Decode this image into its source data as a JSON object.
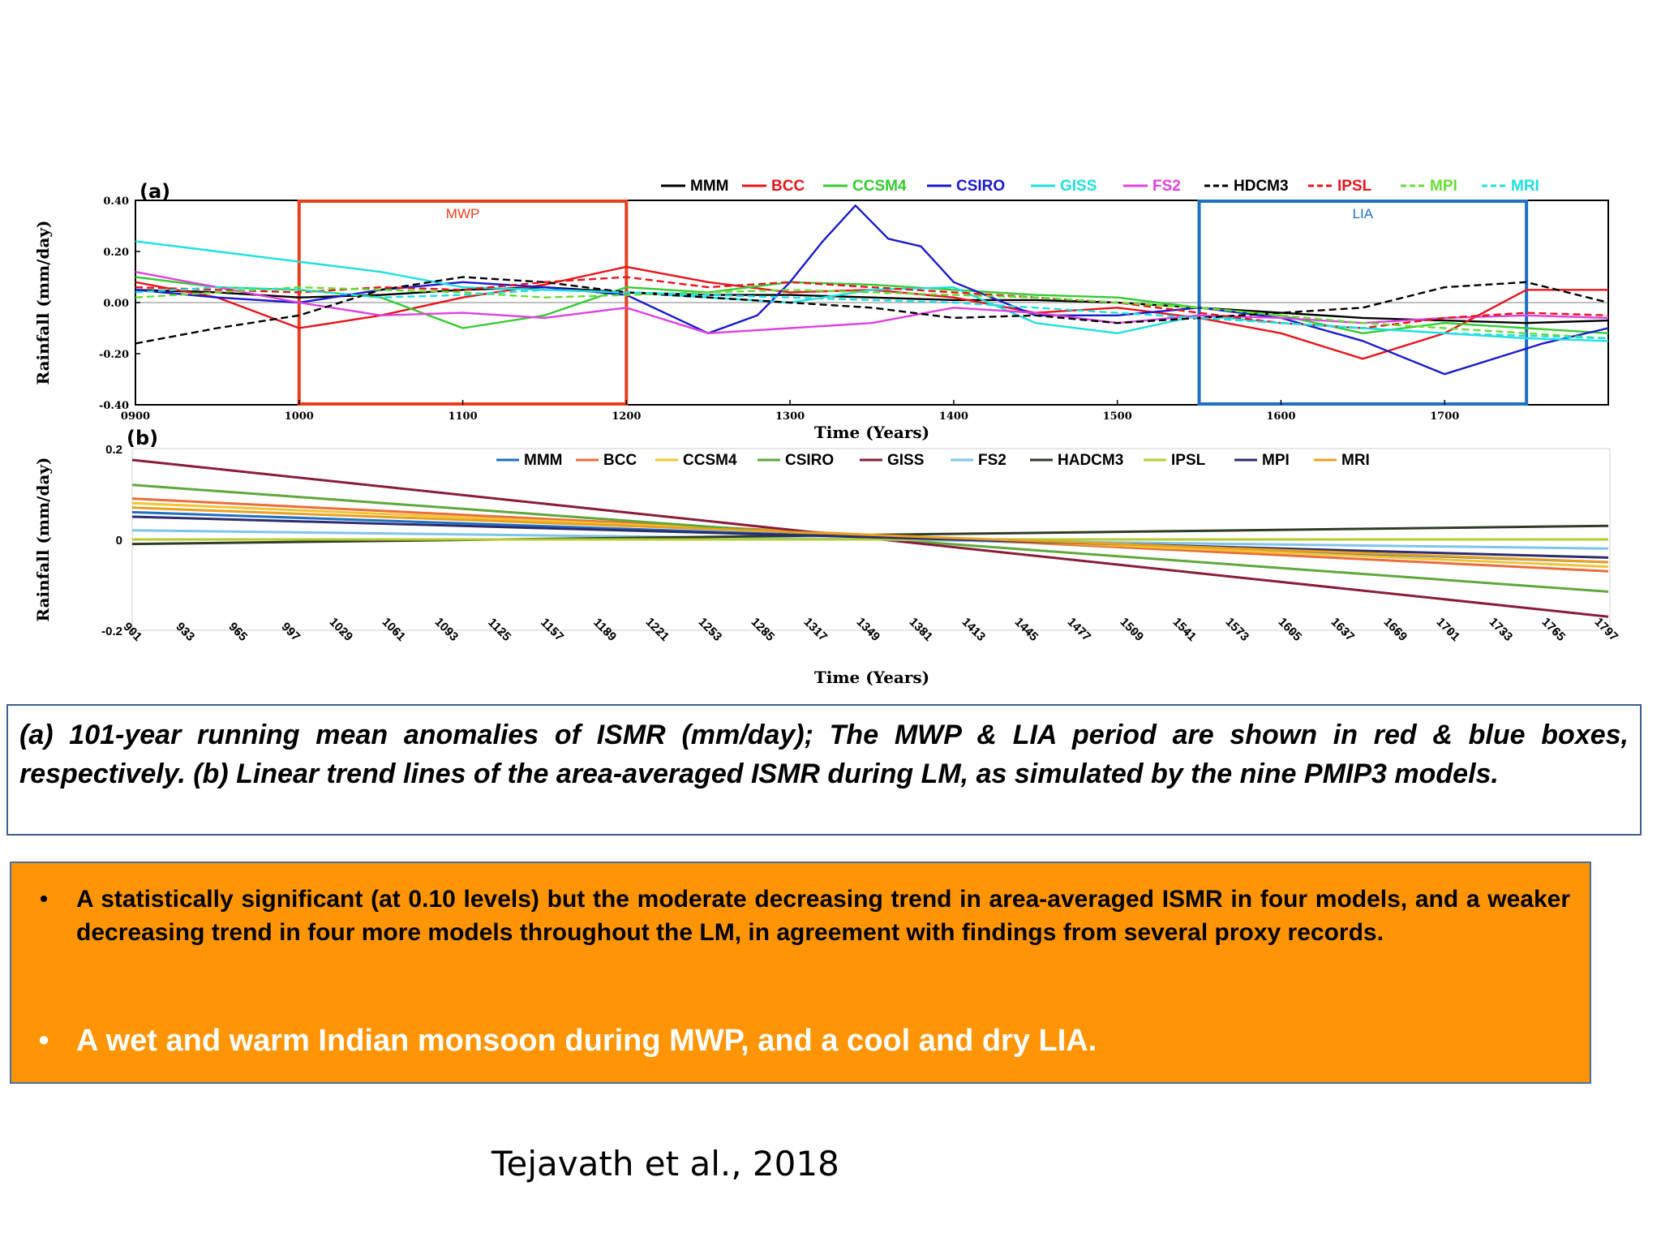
{
  "chart_data": [
    {
      "panel": "(a)",
      "type": "line",
      "xlabel": "Time (Years)",
      "ylabel": "Rainfall (mm/day)",
      "xlim": [
        900,
        1800
      ],
      "ylim": [
        -0.4,
        0.4
      ],
      "xticks": [
        "0900",
        "1000",
        "1100",
        "1200",
        "1300",
        "1400",
        "1500",
        "1600",
        "1700"
      ],
      "xtick_values": [
        900,
        1000,
        1100,
        1200,
        1300,
        1400,
        1500,
        1600,
        1700
      ],
      "yticks": [
        "0.40",
        "0.20",
        "0.00",
        "-0.20",
        "-0.40"
      ],
      "ytick_values": [
        0.4,
        0.2,
        0.0,
        -0.2,
        -0.4
      ],
      "legend_position": "top",
      "boxes": [
        {
          "label": "MWP",
          "from": 1000,
          "to": 1200,
          "color": "#e8401c"
        },
        {
          "label": "LIA",
          "from": 1550,
          "to": 1750,
          "color": "#1f6fc4"
        }
      ],
      "series": [
        {
          "name": "MMM",
          "color": "#000000",
          "dash": "solid",
          "x": [
            900,
            950,
            1000,
            1050,
            1100,
            1150,
            1200,
            1250,
            1300,
            1350,
            1400,
            1450,
            1500,
            1550,
            1600,
            1650,
            1700,
            1750,
            1800
          ],
          "values": [
            0.05,
            0.04,
            0.02,
            0.03,
            0.05,
            0.06,
            0.04,
            0.03,
            0.03,
            0.02,
            0.01,
            0.01,
            0.0,
            -0.02,
            -0.04,
            -0.06,
            -0.07,
            -0.08,
            -0.07
          ]
        },
        {
          "name": "BCC",
          "color": "#e8141c",
          "dash": "solid",
          "x": [
            900,
            950,
            1000,
            1050,
            1100,
            1150,
            1200,
            1250,
            1300,
            1350,
            1400,
            1450,
            1500,
            1550,
            1600,
            1650,
            1700,
            1750,
            1800
          ],
          "values": [
            0.08,
            0.02,
            -0.1,
            -0.05,
            0.02,
            0.07,
            0.14,
            0.08,
            0.04,
            0.05,
            0.02,
            -0.04,
            -0.02,
            -0.06,
            -0.12,
            -0.22,
            -0.12,
            0.05,
            0.05
          ]
        },
        {
          "name": "CCSM4",
          "color": "#33cc33",
          "dash": "solid",
          "x": [
            900,
            950,
            1000,
            1050,
            1100,
            1150,
            1200,
            1250,
            1300,
            1350,
            1400,
            1450,
            1500,
            1550,
            1600,
            1650,
            1700,
            1750,
            1800
          ],
          "values": [
            0.1,
            0.06,
            0.05,
            0.02,
            -0.1,
            -0.05,
            0.06,
            0.04,
            0.08,
            0.07,
            0.05,
            0.03,
            0.02,
            -0.02,
            -0.05,
            -0.12,
            -0.08,
            -0.1,
            -0.12
          ]
        },
        {
          "name": "CSIRO",
          "color": "#1a1acc",
          "dash": "solid",
          "x": [
            900,
            950,
            1000,
            1050,
            1100,
            1150,
            1200,
            1250,
            1280,
            1300,
            1320,
            1340,
            1360,
            1380,
            1400,
            1450,
            1500,
            1550,
            1600,
            1650,
            1700,
            1740,
            1760,
            1800
          ],
          "values": [
            0.05,
            0.02,
            0.0,
            0.05,
            0.08,
            0.06,
            0.03,
            -0.12,
            -0.05,
            0.08,
            0.24,
            0.38,
            0.25,
            0.22,
            0.08,
            -0.05,
            -0.05,
            -0.02,
            -0.06,
            -0.15,
            -0.28,
            -0.2,
            -0.16,
            -0.1
          ]
        },
        {
          "name": "GISS",
          "color": "#1ee0e0",
          "dash": "solid",
          "x": [
            900,
            950,
            1000,
            1050,
            1100,
            1150,
            1200,
            1250,
            1300,
            1350,
            1400,
            1450,
            1500,
            1550,
            1600,
            1650,
            1700,
            1750,
            1800
          ],
          "values": [
            0.24,
            0.2,
            0.16,
            0.12,
            0.06,
            0.05,
            0.04,
            0.02,
            0.0,
            0.05,
            0.06,
            -0.08,
            -0.12,
            -0.05,
            -0.08,
            -0.1,
            -0.12,
            -0.14,
            -0.15
          ]
        },
        {
          "name": "FS2",
          "color": "#e040e0",
          "dash": "solid",
          "x": [
            900,
            950,
            1000,
            1050,
            1100,
            1150,
            1200,
            1250,
            1300,
            1350,
            1400,
            1450,
            1500,
            1550,
            1600,
            1650,
            1700,
            1750,
            1800
          ],
          "values": [
            0.12,
            0.06,
            0.0,
            -0.05,
            -0.04,
            -0.06,
            -0.02,
            -0.12,
            -0.1,
            -0.08,
            -0.02,
            -0.04,
            -0.08,
            -0.05,
            -0.06,
            -0.08,
            -0.06,
            -0.05,
            -0.06
          ]
        },
        {
          "name": "HDCM3",
          "color": "#000000",
          "dash": "dash",
          "x": [
            900,
            950,
            1000,
            1050,
            1100,
            1150,
            1200,
            1250,
            1300,
            1350,
            1400,
            1450,
            1500,
            1550,
            1600,
            1650,
            1700,
            1750,
            1800
          ],
          "values": [
            -0.16,
            -0.1,
            -0.05,
            0.05,
            0.1,
            0.08,
            0.04,
            0.02,
            0.0,
            -0.02,
            -0.06,
            -0.05,
            -0.08,
            -0.06,
            -0.04,
            -0.02,
            0.06,
            0.08,
            0.0
          ]
        },
        {
          "name": "IPSL",
          "color": "#e8141c",
          "dash": "dash",
          "x": [
            900,
            950,
            1000,
            1050,
            1100,
            1150,
            1200,
            1250,
            1300,
            1350,
            1400,
            1450,
            1500,
            1550,
            1600,
            1650,
            1700,
            1750,
            1800
          ],
          "values": [
            0.06,
            0.05,
            0.04,
            0.06,
            0.05,
            0.08,
            0.1,
            0.06,
            0.08,
            0.06,
            0.04,
            0.02,
            0.0,
            -0.04,
            -0.08,
            -0.1,
            -0.06,
            -0.04,
            -0.05
          ]
        },
        {
          "name": "MPI",
          "color": "#66dd33",
          "dash": "dash",
          "x": [
            900,
            950,
            1000,
            1050,
            1100,
            1150,
            1200,
            1250,
            1300,
            1350,
            1400,
            1450,
            1500,
            1550,
            1600,
            1650,
            1700,
            1750,
            1800
          ],
          "values": [
            0.02,
            0.04,
            0.06,
            0.05,
            0.04,
            0.02,
            0.03,
            0.04,
            0.05,
            0.04,
            0.03,
            0.02,
            0.0,
            -0.02,
            -0.05,
            -0.08,
            -0.1,
            -0.12,
            -0.14
          ]
        },
        {
          "name": "MRI",
          "color": "#1ee0e0",
          "dash": "dash",
          "x": [
            900,
            950,
            1000,
            1050,
            1100,
            1150,
            1200,
            1250,
            1300,
            1350,
            1400,
            1450,
            1500,
            1550,
            1600,
            1650,
            1700,
            1750,
            1800
          ],
          "values": [
            0.04,
            0.06,
            0.05,
            0.02,
            0.03,
            0.05,
            0.04,
            0.03,
            0.02,
            0.01,
            0.0,
            -0.02,
            -0.04,
            -0.06,
            -0.08,
            -0.1,
            -0.12,
            -0.13,
            -0.14
          ]
        }
      ]
    },
    {
      "panel": "(b)",
      "type": "line",
      "xlabel": "Time (Years)",
      "ylabel": "Rainfall (mm/day)",
      "xlim": [
        901,
        1797
      ],
      "ylim": [
        -0.2,
        0.2
      ],
      "yticks": [
        "0.2",
        "0",
        "-0.2"
      ],
      "ytick_values": [
        0.2,
        0,
        -0.2
      ],
      "xticks": [
        "901",
        "933",
        "965",
        "997",
        "1029",
        "1061",
        "1093",
        "1125",
        "1157",
        "1189",
        "1221",
        "1253",
        "1285",
        "1317",
        "1349",
        "1381",
        "1413",
        "1445",
        "1477",
        "1509",
        "1541",
        "1573",
        "1605",
        "1637",
        "1669",
        "1701",
        "1733",
        "1765",
        "1797"
      ],
      "legend_position": "top",
      "series": [
        {
          "name": "MMM",
          "color": "#1f6fc4",
          "x": [
            901,
            1797
          ],
          "values": [
            0.06,
            -0.05
          ]
        },
        {
          "name": "BCC",
          "color": "#ea6d3a",
          "x": [
            901,
            1797
          ],
          "values": [
            0.09,
            -0.07
          ]
        },
        {
          "name": "CCSM4",
          "color": "#f2c432",
          "x": [
            901,
            1797
          ],
          "values": [
            0.08,
            -0.06
          ]
        },
        {
          "name": "CSIRO",
          "color": "#5fa83b",
          "x": [
            901,
            1797
          ],
          "values": [
            0.12,
            -0.115
          ]
        },
        {
          "name": "GISS",
          "color": "#8a1c3a",
          "x": [
            901,
            1797
          ],
          "values": [
            0.175,
            -0.17
          ]
        },
        {
          "name": "FS2",
          "color": "#7fc4ee",
          "x": [
            901,
            1797
          ],
          "values": [
            0.02,
            -0.02
          ]
        },
        {
          "name": "HADCM3",
          "color": "#2e3d24",
          "x": [
            901,
            1797
          ],
          "values": [
            -0.01,
            0.03
          ]
        },
        {
          "name": "IPSL",
          "color": "#b5cc30",
          "x": [
            901,
            1797
          ],
          "values": [
            0.0,
            0.0
          ]
        },
        {
          "name": "MPI",
          "color": "#2c2c6e",
          "x": [
            901,
            1797
          ],
          "values": [
            0.05,
            -0.04
          ]
        },
        {
          "name": "MRI",
          "color": "#e8a020",
          "x": [
            901,
            1797
          ],
          "values": [
            0.07,
            -0.05
          ]
        }
      ]
    }
  ],
  "caption": "(a) 101-year running mean anomalies of ISMR (mm/day); The MWP & LIA period are shown in red & blue boxes, respectively. (b) Linear trend lines of the area-averaged ISMR during LM, as simulated by the nine PMIP3 models.",
  "summary": {
    "bullet_symbol": "•",
    "point1": "A statistically significant (at 0.10 levels) but the moderate decreasing trend in area-averaged ISMR in four models, and a weaker decreasing trend in four more models throughout the LM,  in agreement with findings from several proxy records.",
    "point2": "A wet and warm Indian monsoon during MWP, and a cool and dry LIA."
  },
  "citation": "Tejavath et al., 2018"
}
